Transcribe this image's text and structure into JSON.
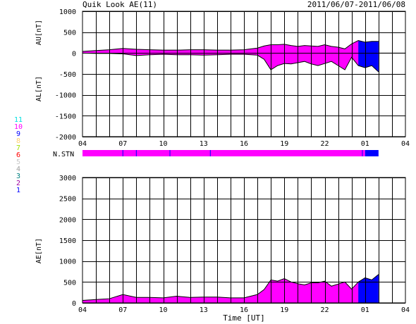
{
  "header": {
    "title": "Quik Look AE(11)",
    "date_range": "2011/06/07-2011/06/08"
  },
  "colors": {
    "magenta": "#ff00ff",
    "blue": "#0000ff",
    "black": "#000000",
    "grid": "#000000"
  },
  "station_legend": [
    {
      "num": "11",
      "color": "#00e0e0"
    },
    {
      "num": "10",
      "color": "#ff00ff"
    },
    {
      "num": "9",
      "color": "#0000ff"
    },
    {
      "num": "8",
      "color": "#ffd070"
    },
    {
      "num": "7",
      "color": "#a0e000"
    },
    {
      "num": "6",
      "color": "#ff0000"
    },
    {
      "num": "5",
      "color": "#c8c8c8"
    },
    {
      "num": "4",
      "color": "#a0a0a0"
    },
    {
      "num": "3",
      "color": "#008080"
    },
    {
      "num": "2",
      "color": "#a000a0"
    },
    {
      "num": "1",
      "color": "#0000ff"
    }
  ],
  "nstn_label": "N.STN",
  "chart_data": [
    {
      "id": "au-al",
      "type": "area",
      "ylabel_upper": "AU[nT]",
      "ylabel_lower": "AL[nT]",
      "ylim": [
        -2000,
        1000
      ],
      "yticks": [
        "1000",
        "500",
        "0",
        "-500",
        "-1000",
        "-1500",
        "-2000"
      ],
      "xticks": [
        "04",
        "07",
        "10",
        "13",
        "16",
        "19",
        "22",
        "01",
        "04"
      ],
      "x_hours": [
        4,
        5,
        6,
        7,
        8,
        9,
        10,
        11,
        12,
        13,
        14,
        15,
        16,
        17,
        17.5,
        18,
        18.5,
        19,
        19.5,
        20,
        20.5,
        21,
        21.5,
        22,
        22.5,
        23,
        23.5,
        24,
        24.5,
        25,
        25.5,
        26
      ],
      "au": [
        40,
        60,
        80,
        110,
        90,
        80,
        70,
        70,
        80,
        80,
        70,
        70,
        80,
        120,
        170,
        200,
        200,
        210,
        180,
        160,
        180,
        170,
        160,
        200,
        160,
        140,
        100,
        220,
        300,
        260,
        280,
        280
      ],
      "al": [
        0,
        -10,
        -10,
        -20,
        -60,
        -40,
        -30,
        -40,
        -40,
        -50,
        -40,
        -30,
        -30,
        -50,
        -150,
        -400,
        -300,
        -250,
        -260,
        -230,
        -200,
        -260,
        -300,
        -250,
        -200,
        -300,
        -400,
        -100,
        -300,
        -350,
        -300,
        -450
      ],
      "blue_from_hour": 24.9
    },
    {
      "id": "ae",
      "type": "area",
      "ylabel": "AE[nT]",
      "ylim": [
        0,
        3000
      ],
      "yticks": [
        "3000",
        "2500",
        "2000",
        "1500",
        "1000",
        "500",
        "0"
      ],
      "xticks": [
        "04",
        "07",
        "10",
        "13",
        "16",
        "19",
        "22",
        "01",
        "04"
      ],
      "xlabel": "Time [UT]",
      "x_hours": [
        4,
        5,
        6,
        7,
        8,
        9,
        10,
        11,
        12,
        13,
        14,
        15,
        16,
        17,
        17.5,
        18,
        18.5,
        19,
        19.5,
        20,
        20.5,
        21,
        21.5,
        22,
        22.5,
        23,
        23.5,
        24,
        24.5,
        25,
        25.5,
        26
      ],
      "values": [
        60,
        80,
        100,
        200,
        130,
        130,
        120,
        160,
        130,
        140,
        140,
        120,
        120,
        200,
        320,
        550,
        520,
        580,
        500,
        460,
        430,
        480,
        480,
        520,
        400,
        450,
        500,
        330,
        500,
        600,
        550,
        680
      ],
      "blue_from_hour": 24.9
    }
  ]
}
